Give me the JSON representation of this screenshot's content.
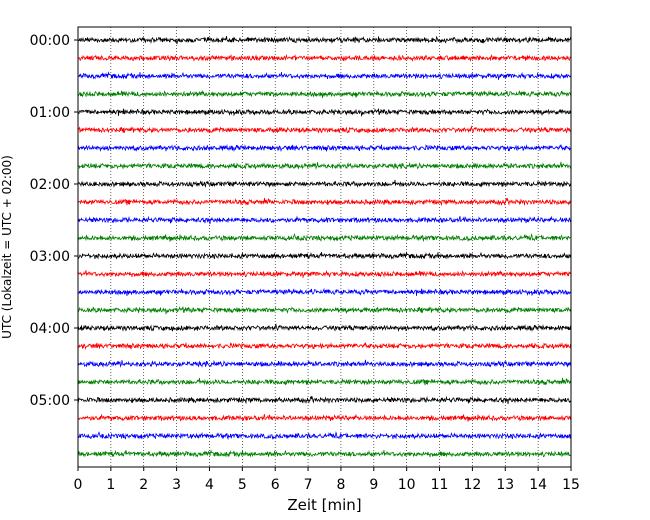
{
  "chart_data": {
    "type": "line",
    "xlabel": "Zeit  [min]",
    "ylabel": "UTC (Lokalzeit = UTC + 02:00)",
    "xlim": [
      0,
      15
    ],
    "x_ticks": [
      0,
      1,
      2,
      3,
      4,
      5,
      6,
      7,
      8,
      9,
      10,
      11,
      12,
      13,
      14,
      15
    ],
    "x_tick_labels": [
      "0",
      "1",
      "2",
      "3",
      "4",
      "5",
      "6",
      "7",
      "8",
      "9",
      "10",
      "11",
      "12",
      "13",
      "14",
      "15"
    ],
    "y_tick_labels": [
      "00:00",
      "01:00",
      "02:00",
      "03:00",
      "04:00",
      "05:00"
    ],
    "grid": "vertical dotted",
    "trace_interval_minutes": 15,
    "trace_count": 24,
    "trace_colors": [
      "#000000",
      "#ff0000",
      "#0000ff",
      "#008000"
    ]
  }
}
